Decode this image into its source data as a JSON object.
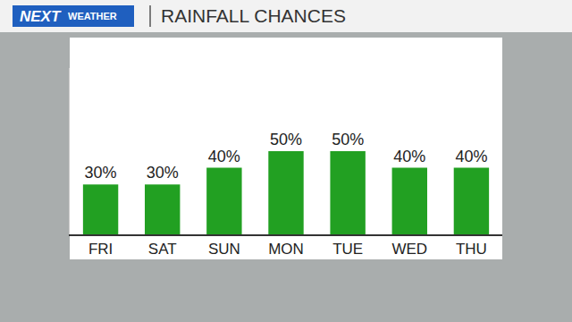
{
  "chart_data": {
    "type": "bar",
    "title": "RAINFALL CHANCES",
    "annotations": [
      "NEXT",
      "WEATHER"
    ],
    "categories": [
      "FRI",
      "SAT",
      "SUN",
      "MON",
      "TUE",
      "WED",
      "THU"
    ],
    "values": [
      30,
      30,
      40,
      50,
      50,
      40,
      40
    ],
    "value_labels": [
      "30%",
      "30%",
      "40%",
      "50%",
      "50%",
      "40%",
      "40%"
    ],
    "color": "#22a022",
    "ylim": [
      0,
      100
    ],
    "yticks": [],
    "grid": false,
    "data_labels": true,
    "tick_labels": "x"
  }
}
